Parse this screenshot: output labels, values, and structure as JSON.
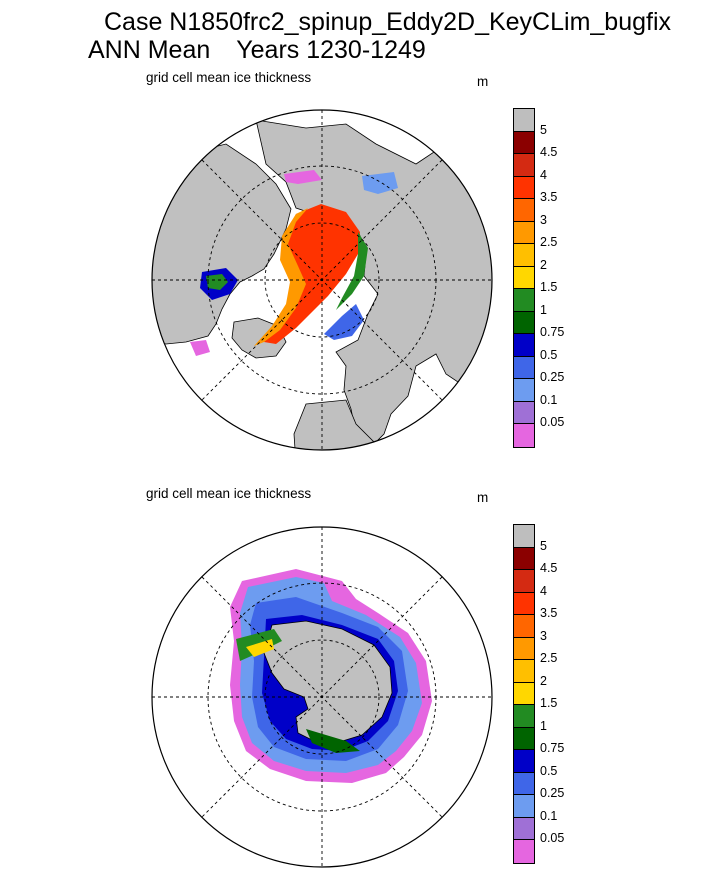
{
  "header": {
    "case_line": "Case N1850frc2_spinup_Eddy2D_KeyCLim_bugfix",
    "mean_label": "ANN Mean",
    "years_label": "Years 1230-1249"
  },
  "colors": {
    "land": "#c0c0c0",
    "ocean": "#ffffff",
    "levels": [
      "#e566e0",
      "#9f70d6",
      "#6d9cf0",
      "#3f66e8",
      "#0000c8",
      "#006400",
      "#228b22",
      "#ffd700",
      "#ffbf00",
      "#ff9900",
      "#ff6600",
      "#ff3300",
      "#d42a12",
      "#8b0000",
      "#bebebe"
    ]
  },
  "chart_data": [
    {
      "type": "heatmap",
      "name": "arctic",
      "title": "grid cell mean ice thickness",
      "units": "m",
      "projection": "north polar stereographic",
      "colorbar_labels": [
        "5",
        "4.5",
        "4",
        "3.5",
        "3",
        "2.5",
        "2",
        "1.5",
        "1",
        "0.75",
        "0.5",
        "0.25",
        "0.1",
        "0.05"
      ],
      "levels": [
        0.05,
        0.1,
        0.25,
        0.5,
        0.75,
        1,
        1.5,
        2,
        2.5,
        3,
        3.5,
        4,
        4.5,
        5
      ]
    },
    {
      "type": "heatmap",
      "name": "antarctic",
      "title": "grid cell mean ice thickness",
      "units": "m",
      "projection": "south polar stereographic",
      "colorbar_labels": [
        "5",
        "4.5",
        "4",
        "3.5",
        "3",
        "2.5",
        "2",
        "1.5",
        "1",
        "0.75",
        "0.5",
        "0.25",
        "0.1",
        "0.05"
      ],
      "levels": [
        0.05,
        0.1,
        0.25,
        0.5,
        0.75,
        1,
        1.5,
        2,
        2.5,
        3,
        3.5,
        4,
        4.5,
        5
      ]
    }
  ]
}
